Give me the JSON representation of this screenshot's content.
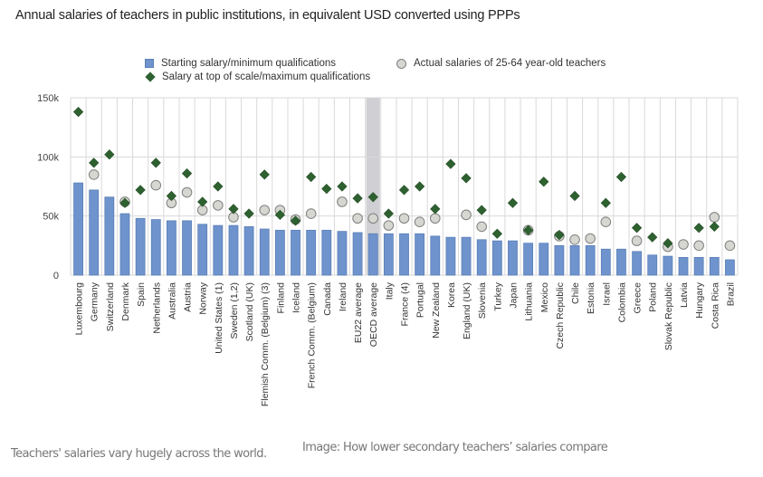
{
  "caption": "Teachers' salaries vary hugely across the world.",
  "credit": "Image: How lower secondary teachers’ salaries compare",
  "colors": {
    "bar": "#6f93cc",
    "bar_edge": "#5a7fb8",
    "diamond": "#2e6130",
    "circle_fill": "#d5d7d0",
    "circle_edge": "#808080",
    "grid": "#d9d9d9",
    "highlight": "#d0d0d4"
  },
  "chart_data": {
    "type": "bar",
    "title": "Annual salaries of teachers in public institutions, in equivalent USD converted using PPPs",
    "xlabel": "",
    "ylabel": "",
    "ylim": [
      0,
      150000
    ],
    "yticks": [
      {
        "value": 0,
        "label": "0"
      },
      {
        "value": 50000,
        "label": "50k"
      },
      {
        "value": 100000,
        "label": "100k"
      },
      {
        "value": 150000,
        "label": "150k"
      }
    ],
    "grid": true,
    "highlight_category": "OECD average",
    "legend": {
      "placement": "top-center",
      "entries": [
        {
          "key": "starting",
          "label": "Starting salary/minimum qualifications",
          "marker": "bar"
        },
        {
          "key": "top",
          "label": "Salary at top of scale/maximum qualifications",
          "marker": "diamond"
        },
        {
          "key": "actual",
          "label": "Actual salaries of 25-64 year-old teachers",
          "marker": "circle"
        }
      ]
    },
    "categories": [
      "Luxembourg",
      "Germany",
      "Switzerland",
      "Denmark",
      "Spain",
      "Netherlands",
      "Australia",
      "Austria",
      "Norway",
      "United States (1)",
      "Sweden (1,2)",
      "Scotland (UK)",
      "Flemish Comm. (Belgium) (3)",
      "Finland",
      "Iceland",
      "French Comm. (Belgium)",
      "Canada",
      "Ireland",
      "EU22 average",
      "OECD average",
      "Italy",
      "France (4)",
      "Portugal",
      "New Zealand",
      "Korea",
      "England (UK)",
      "Slovenia",
      "Turkey",
      "Japan",
      "Lithuania",
      "Mexico",
      "Czech Republic",
      "Chile",
      "Estonia",
      "Israel",
      "Colombia",
      "Greece",
      "Poland",
      "Slovak Republic",
      "Latvia",
      "Hungary",
      "Costa Rica",
      "Brazil"
    ],
    "series": [
      {
        "name": "Starting salary/minimum qualifications",
        "type": "bar",
        "values": [
          78000,
          72000,
          66000,
          52000,
          48000,
          47000,
          46000,
          46000,
          43000,
          42000,
          42000,
          41000,
          39000,
          38000,
          38000,
          38000,
          38000,
          37000,
          36000,
          35000,
          35000,
          35000,
          35000,
          33000,
          32000,
          32000,
          30000,
          29000,
          29000,
          27000,
          27000,
          25000,
          25000,
          25000,
          22000,
          22000,
          20000,
          17000,
          16000,
          15000,
          15000,
          15000,
          13000
        ]
      },
      {
        "name": "Salary at top of scale/maximum qualifications",
        "type": "diamond",
        "values": [
          138000,
          95000,
          102000,
          61000,
          72000,
          95000,
          67000,
          86000,
          62000,
          75000,
          56000,
          52000,
          85000,
          51000,
          46000,
          83000,
          73000,
          75000,
          65000,
          66000,
          52000,
          72000,
          75000,
          56000,
          94000,
          82000,
          55000,
          35000,
          61000,
          38000,
          79000,
          34000,
          67000,
          null,
          61000,
          83000,
          40000,
          32000,
          27000,
          null,
          40000,
          41000,
          null
        ]
      },
      {
        "name": "Actual salaries of 25-64 year-old teachers",
        "type": "circle",
        "values": [
          null,
          85000,
          null,
          62000,
          null,
          76000,
          61000,
          70000,
          55000,
          59000,
          49000,
          null,
          55000,
          55000,
          47000,
          52000,
          null,
          62000,
          48000,
          48000,
          42000,
          48000,
          45000,
          48000,
          null,
          51000,
          41000,
          null,
          null,
          38000,
          null,
          33000,
          30000,
          31000,
          45000,
          null,
          29000,
          null,
          24000,
          26000,
          25000,
          49000,
          25000
        ]
      }
    ]
  }
}
